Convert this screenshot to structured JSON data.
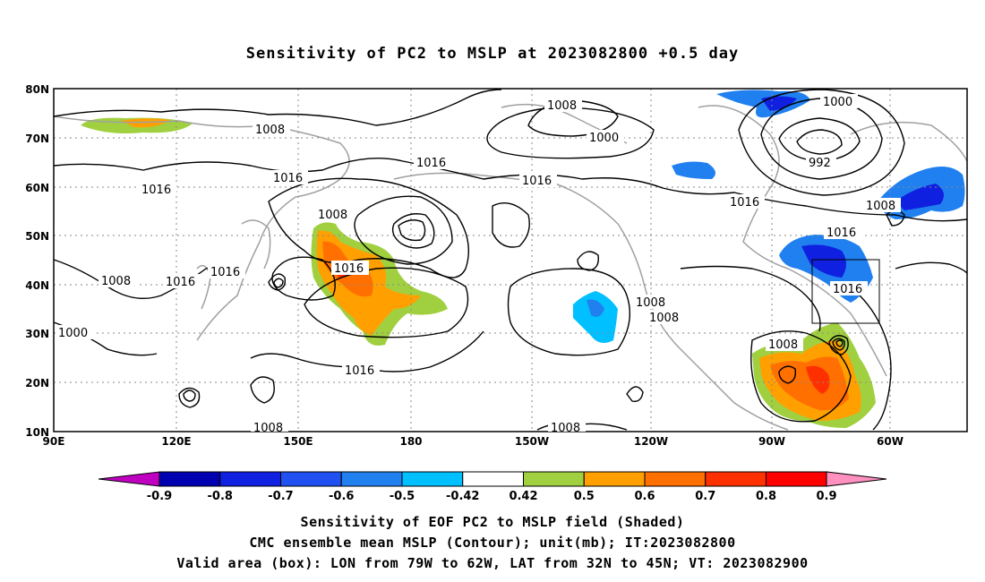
{
  "title": "Sensitivity of PC2 to MSLP at 2023082800 +0.5 day",
  "map": {
    "lat_ticks": [
      "80N",
      "70N",
      "60N",
      "50N",
      "40N",
      "30N",
      "20N",
      "10N"
    ],
    "lon_ticks": [
      "90E",
      "120E",
      "150E",
      "180",
      "150W",
      "120W",
      "90W",
      "60W"
    ],
    "grid": "dotted",
    "valid_box": {
      "lon_from": "79W",
      "lon_to": "62W",
      "lat_from": "32N",
      "lat_to": "45N"
    },
    "isobar_labels": [
      "1008",
      "1000",
      "1016",
      "1016",
      "1008",
      "1016",
      "1016",
      "1008",
      "1016",
      "1000",
      "1016",
      "992",
      "1016",
      "1008",
      "1016",
      "1016",
      "1016",
      "1008",
      "1008",
      "1008",
      "1008",
      "1016",
      "1000",
      "1008",
      "1008"
    ]
  },
  "colorbar": {
    "labels": [
      "-0.9",
      "-0.8",
      "-0.7",
      "-0.6",
      "-0.5",
      "-0.42",
      "0.42",
      "0.5",
      "0.6",
      "0.7",
      "0.8",
      "0.9"
    ],
    "colors": [
      "#c000c0",
      "#0000b0",
      "#1020e0",
      "#2050f0",
      "#2080f0",
      "#00c0ff",
      "#ffffff",
      "#a0d040",
      "#ffa000",
      "#ff7000",
      "#ff3000",
      "#ff0000",
      "#ff90c0"
    ]
  },
  "captions": {
    "line1": "Sensitivity of EOF PC2 to MSLP field (Shaded)",
    "line2": "CMC ensemble mean MSLP (Contour); unit(mb); IT:2023082800",
    "line3": "Valid area (box): LON from 79W to 62W, LAT from 32N to 45N; VT: 2023082900"
  }
}
